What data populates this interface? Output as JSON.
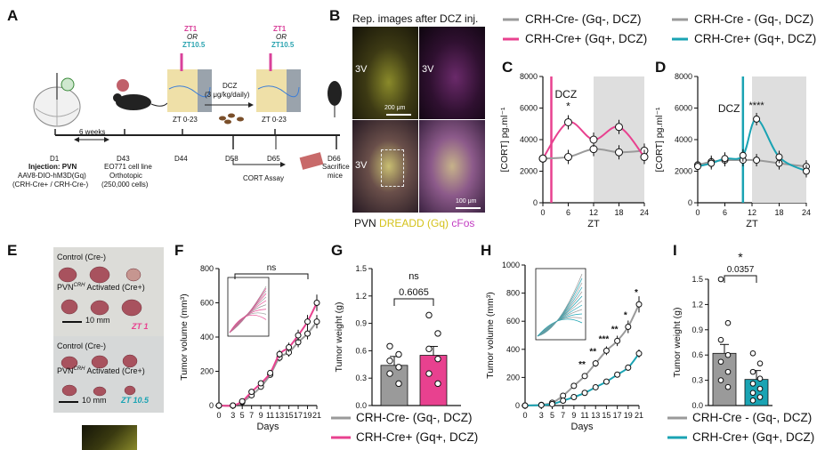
{
  "colors": {
    "gray": "#9a9a9a",
    "pink": "#e8418f",
    "teal": "#1aa3b3",
    "shade": "#dedede",
    "ztPink": "#d9419a",
    "ztTeal": "#2aa3b0"
  },
  "panelA": {
    "label": "A",
    "d1": "D1",
    "injection": "Injection: PVN",
    "virus": "AAV8-DIO-hM3D(Gq)",
    "groups": "(CRH-Cre+ / CRH-Cre-)",
    "weeks": "6 weeks",
    "d43": "D43",
    "cellline": "EO771 cell line",
    "orthotopic": "Orthotopic",
    "cells": "(250,000 cells)",
    "d44": "D44",
    "zt1": "ZT1",
    "or": "OR",
    "zt105": "ZT10.5",
    "zt023a": "ZT 0-23",
    "dcz": "DCZ",
    "dose": "(3 μg/kg/daily)",
    "d58": "D58",
    "d65": "D65",
    "zt023b": "ZT 0-23",
    "cort": "CORT Assay",
    "d66": "D66",
    "sacrifice": "Sacrifice",
    "mice": "mice"
  },
  "panelB": {
    "label": "B",
    "title": "Rep. images after DCZ inj.",
    "v1": "3V",
    "v2": "3V",
    "v3": "3V",
    "scale1": "200 μm",
    "scale2": "100 μm",
    "cap_pvn": "PVN",
    "cap_dreadd": "DREADD (Gq)",
    "cap_cfos": "cFos"
  },
  "legendTop": {
    "l1": "CRH-Cre- (Gq-, DCZ)",
    "l2": "CRH-Cre+ (Gq+, DCZ)",
    "r1": "CRH-Cre - (Gq-, DCZ)",
    "r2": "CRH-Cre+ (Gq+, DCZ)"
  },
  "panelC": {
    "label": "C",
    "dcz": "DCZ",
    "star": "*",
    "ylabel": "[CORT] pg.ml⁻¹",
    "xlabel": "ZT",
    "yticks": [
      "0",
      "2000",
      "4000",
      "6000",
      "8000"
    ],
    "xticks": [
      "0",
      "6",
      "12",
      "18",
      "24"
    ]
  },
  "panelD": {
    "label": "D",
    "dcz": "DCZ",
    "star": "****",
    "ylabel": "[CORT] pg.ml⁻¹",
    "xlabel": "ZT",
    "yticks": [
      "0",
      "2000",
      "4000",
      "6000",
      "8000"
    ],
    "xticks": [
      "0",
      "6",
      "12",
      "18",
      "24"
    ]
  },
  "panelE": {
    "label": "E",
    "top_ctrl": "Control (Cre-)",
    "top_act": "PVN",
    "sup": "CRH",
    "top_act2": " Activated (Cre+)",
    "top_scale": "10 mm",
    "top_zt": "ZT 1",
    "bot_ctrl": "Control (Cre-)",
    "bot_act": "PVN",
    "bot_act2": " Activated (Cre+)",
    "bot_scale": "10 mm",
    "bot_zt": "ZT 10.5"
  },
  "panelF": {
    "label": "F",
    "ns": "ns",
    "ylabel": "Tumor volume (mm³)",
    "xlabel": "Days",
    "yticks": [
      "0",
      "200",
      "400",
      "600",
      "800"
    ],
    "xticks": [
      "0",
      "3",
      "5",
      "7",
      "9",
      "11",
      "13",
      "15",
      "17",
      "19",
      "21"
    ]
  },
  "panelG": {
    "label": "G",
    "ns": "ns",
    "p": "0.6065",
    "ylabel": "Tumor weight (g)",
    "yticks": [
      "0.0",
      "0.3",
      "0.6",
      "0.9",
      "1.2",
      "1.5"
    ]
  },
  "panelH": {
    "label": "H",
    "ylabel": "Tumor volume (mm³)",
    "xlabel": "Days",
    "yticks": [
      "0",
      "200",
      "400",
      "600",
      "800",
      "1000"
    ],
    "xticks": [
      "0",
      "3",
      "5",
      "7",
      "9",
      "11",
      "13",
      "15",
      "17",
      "19",
      "21"
    ],
    "sigs": [
      "**",
      "**",
      "***",
      "**",
      "*",
      "*"
    ]
  },
  "panelI": {
    "label": "I",
    "star": "*",
    "p": "0.0357",
    "ylabel": "Tumor weight (g)",
    "yticks": [
      "0.0",
      "0.3",
      "0.6",
      "0.9",
      "1.2",
      "1.5"
    ]
  },
  "legendBottom": {
    "l1": "CRH-Cre- (Gq-, DCZ)",
    "l2": "CRH-Cre+ (Gq+, DCZ)",
    "r1": "CRH-Cre - (Gq-, DCZ)",
    "r2": "CRH-Cre+ (Gq+, DCZ)"
  },
  "chart_data": [
    {
      "type": "line",
      "panel": "C",
      "x": [
        0,
        6,
        12,
        18,
        24
      ],
      "xlim": [
        0,
        24
      ],
      "ylim": [
        0,
        8000
      ],
      "series": [
        {
          "name": "CRH-Cre- (Gq-, DCZ)",
          "values": [
            2800,
            2900,
            3400,
            3200,
            3300
          ]
        },
        {
          "name": "CRH-Cre+ (Gq+, DCZ)",
          "values": [
            2800,
            5100,
            4000,
            4800,
            2900
          ]
        }
      ]
    },
    {
      "type": "line",
      "panel": "D",
      "x": [
        0,
        3,
        6,
        10,
        13,
        18,
        24
      ],
      "xlim": [
        0,
        24
      ],
      "ylim": [
        0,
        8000
      ],
      "series": [
        {
          "name": "CRH-Cre - (Gq-, DCZ)",
          "values": [
            2400,
            2600,
            2700,
            2700,
            2700,
            2500,
            2300
          ]
        },
        {
          "name": "CRH-Cre+ (Gq+, DCZ)",
          "values": [
            2300,
            2500,
            2800,
            3000,
            5300,
            2900,
            2000
          ]
        }
      ]
    },
    {
      "type": "line",
      "panel": "F",
      "x": [
        0,
        3,
        5,
        7,
        9,
        11,
        13,
        15,
        17,
        19,
        21
      ],
      "xlim": [
        0,
        21
      ],
      "ylim": [
        0,
        800
      ],
      "series": [
        {
          "name": "CRH-Cre- (Gq-, DCZ)",
          "values": [
            0,
            0,
            20,
            60,
            110,
            180,
            280,
            310,
            370,
            420,
            490
          ]
        },
        {
          "name": "CRH-Cre+ (Gq+, DCZ)",
          "values": [
            0,
            0,
            25,
            80,
            130,
            190,
            300,
            340,
            410,
            490,
            600
          ]
        }
      ]
    },
    {
      "type": "bar",
      "panel": "G",
      "categories": [
        "CRH-Cre- (Gq-, DCZ)",
        "CRH-Cre+ (Gq+, DCZ)"
      ],
      "values": [
        0.44,
        0.55
      ],
      "ylim": [
        0,
        1.5
      ],
      "points": [
        [
          0.65,
          0.56,
          0.49,
          0.42,
          0.35,
          0.24
        ],
        [
          0.99,
          0.79,
          0.62,
          0.51,
          0.35,
          0.24
        ]
      ]
    },
    {
      "type": "line",
      "panel": "H",
      "x": [
        0,
        3,
        5,
        7,
        9,
        11,
        13,
        15,
        17,
        19,
        21
      ],
      "xlim": [
        0,
        21
      ],
      "ylim": [
        0,
        1000
      ],
      "series": [
        {
          "name": "CRH-Cre- (Gq-, DCZ)",
          "values": [
            0,
            5,
            20,
            70,
            140,
            210,
            300,
            390,
            460,
            560,
            720
          ]
        },
        {
          "name": "CRH-Cre+ (Gq+, DCZ)",
          "values": [
            0,
            3,
            10,
            35,
            60,
            90,
            130,
            170,
            220,
            270,
            370
          ]
        }
      ]
    },
    {
      "type": "bar",
      "panel": "I",
      "categories": [
        "CRH-Cre - (Gq-, DCZ)",
        "CRH-Cre+ (Gq+, DCZ)"
      ],
      "values": [
        0.62,
        0.31
      ],
      "ylim": [
        0,
        1.5
      ],
      "points": [
        [
          1.5,
          0.98,
          0.78,
          0.6,
          0.52,
          0.4,
          0.3,
          0.22
        ],
        [
          0.62,
          0.5,
          0.4,
          0.32,
          0.26,
          0.2,
          0.15,
          0.1,
          0.06
        ]
      ]
    }
  ]
}
